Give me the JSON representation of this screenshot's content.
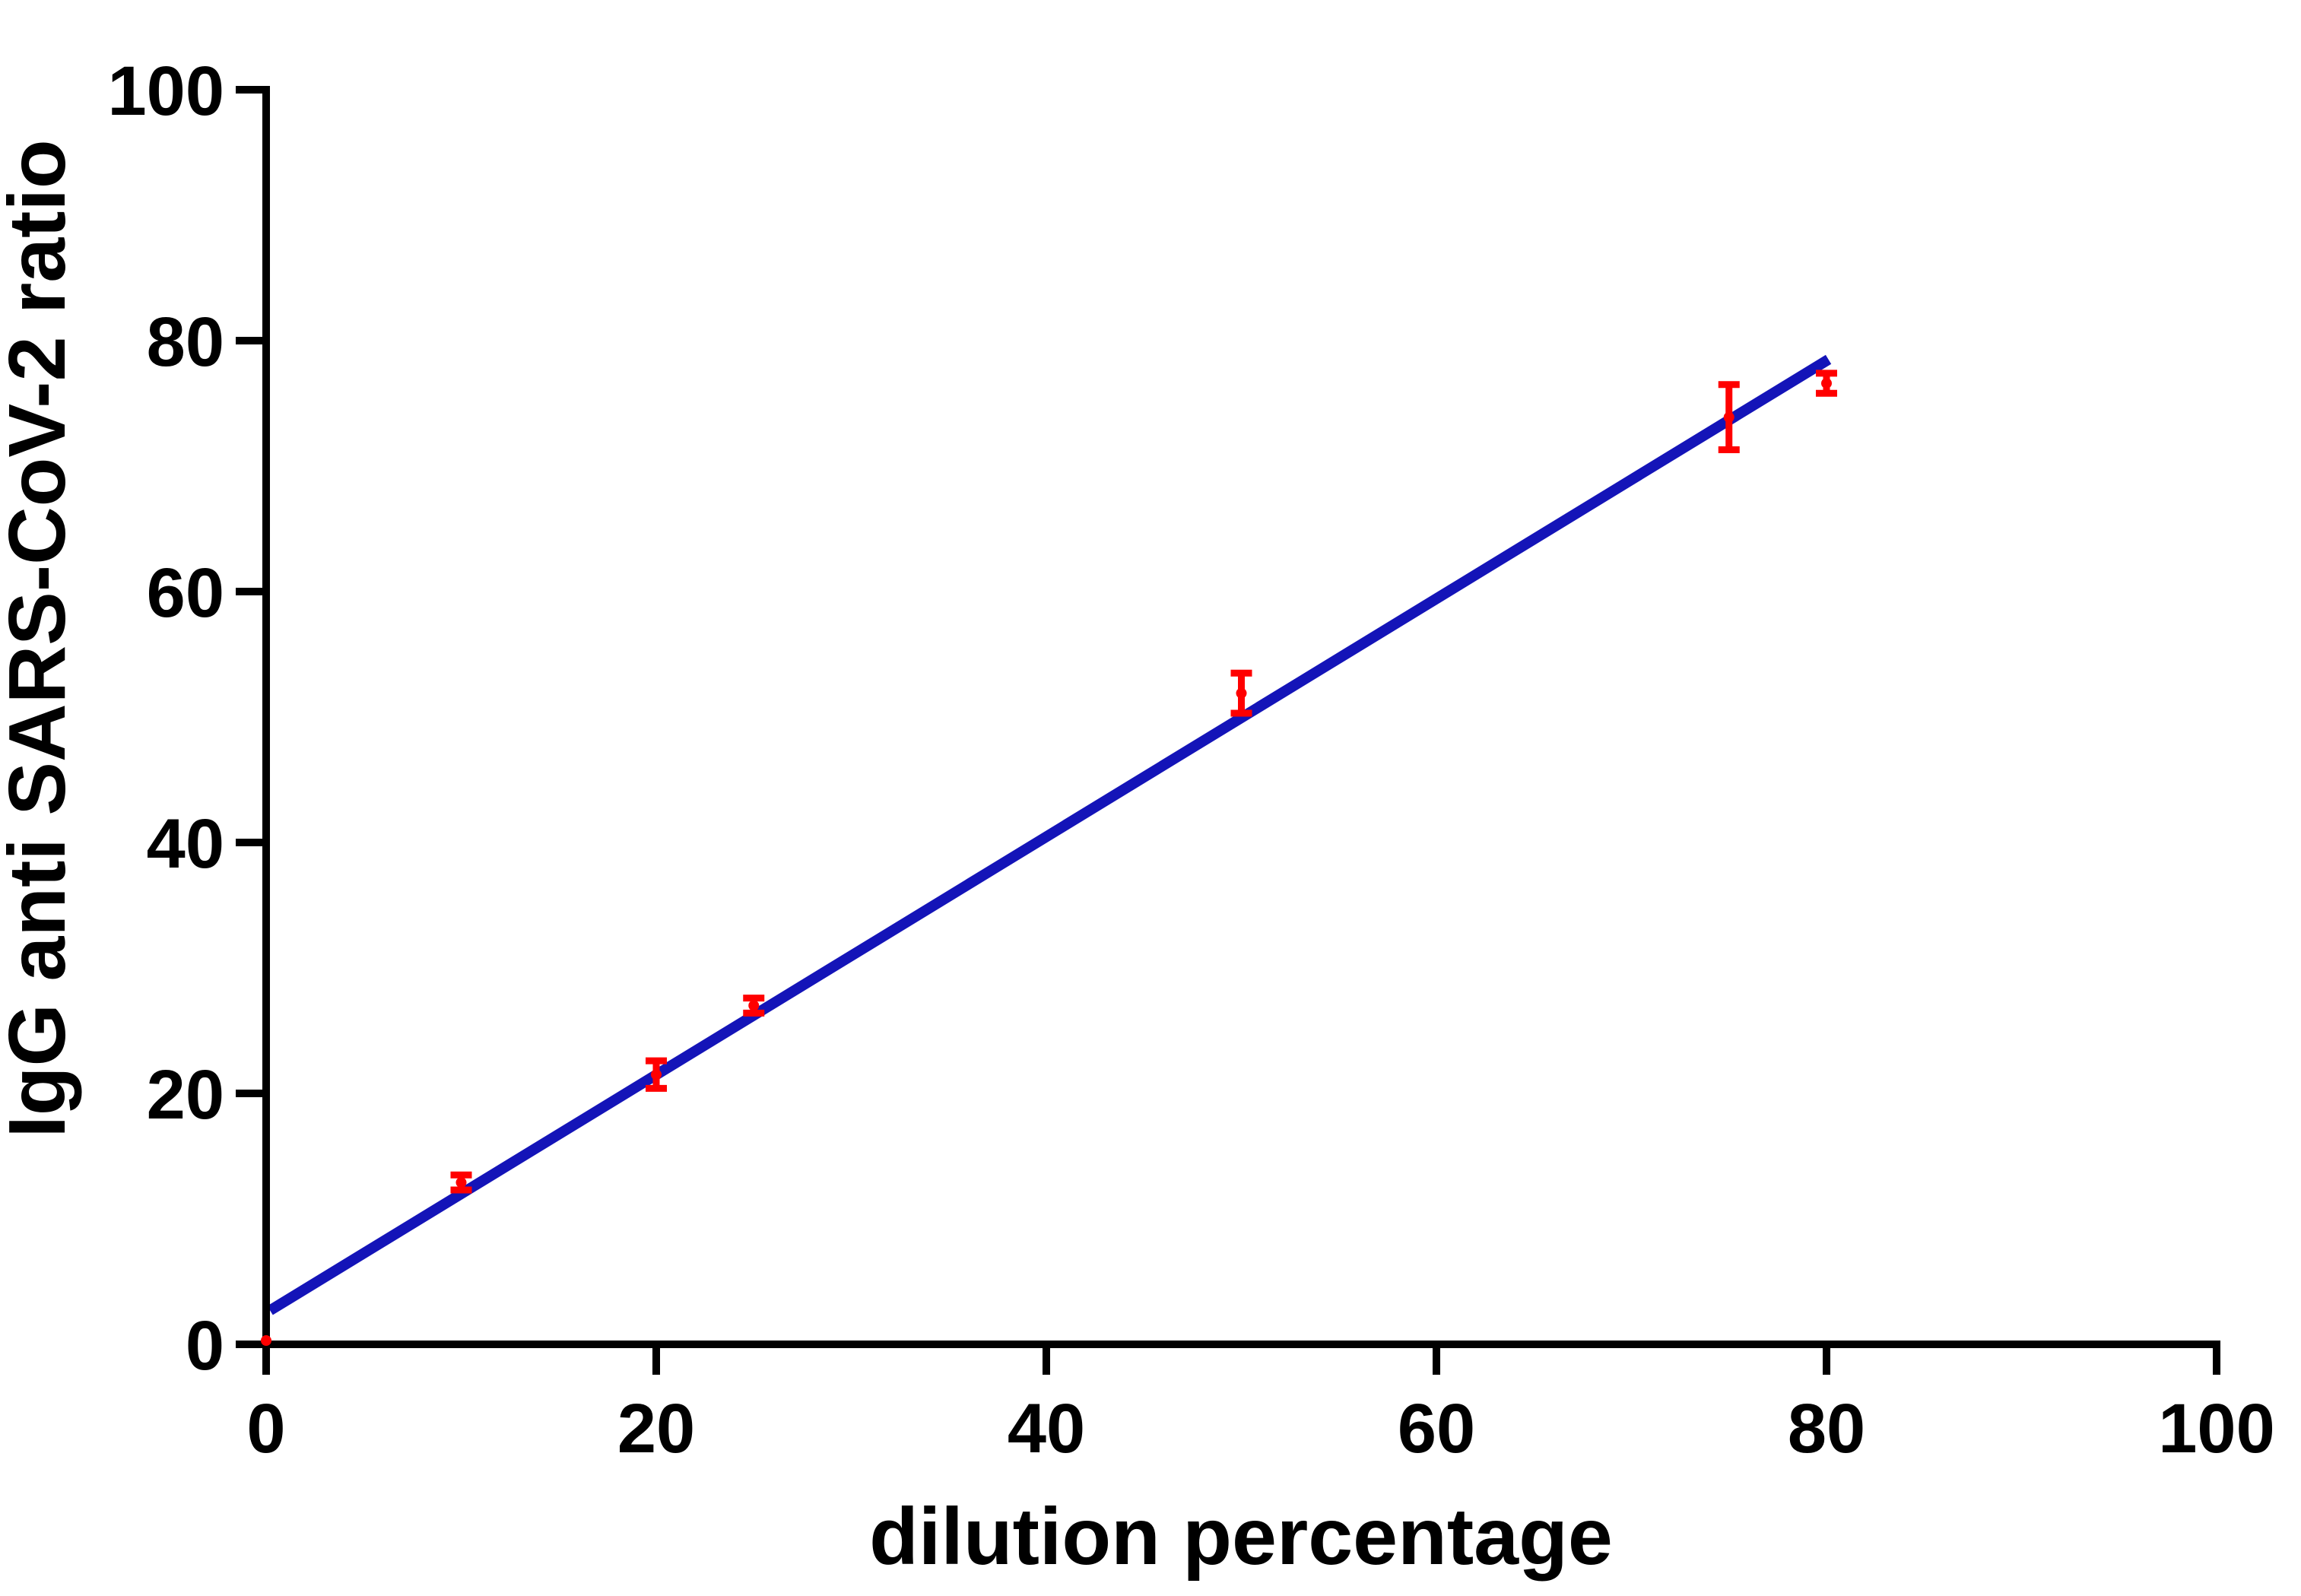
{
  "chart_data": {
    "type": "scatter",
    "title": "",
    "xlabel": "dilution percentage",
    "ylabel": "IgG anti SARS-CoV-2 ratio",
    "xlim": [
      0,
      100
    ],
    "ylim": [
      0,
      100
    ],
    "xticks": [
      0,
      20,
      40,
      60,
      80,
      100
    ],
    "yticks": [
      0,
      20,
      40,
      60,
      80,
      100
    ],
    "grid": false,
    "legend": false,
    "series": [
      {
        "name": "measured-points",
        "type": "scatter-errorbar",
        "color": "#FF0000",
        "points": [
          {
            "x": 0,
            "y": 0.3,
            "err": 0
          },
          {
            "x": 10,
            "y": 12.9,
            "err": 0.6
          },
          {
            "x": 20,
            "y": 21.5,
            "err": 1.1
          },
          {
            "x": 25,
            "y": 27.0,
            "err": 0.6
          },
          {
            "x": 50,
            "y": 51.9,
            "err": 1.6
          },
          {
            "x": 75,
            "y": 73.9,
            "err": 2.6
          },
          {
            "x": 80,
            "y": 76.6,
            "err": 0.8
          }
        ]
      },
      {
        "name": "linear-fit-line",
        "type": "line",
        "color": "#1414B8",
        "x": [
          0.2,
          80.1
        ],
        "y": [
          2.7,
          78.5
        ]
      }
    ],
    "colors": {
      "axis": "#000000",
      "points": "#FF0000",
      "fit_line": "#1414B8",
      "background": "#FFFFFF"
    }
  }
}
